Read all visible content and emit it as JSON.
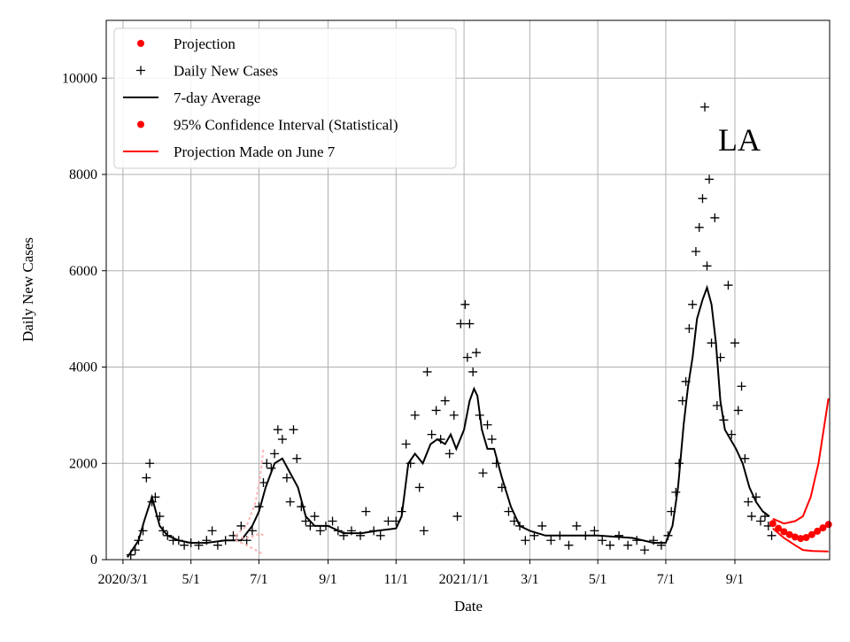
{
  "chart_data": {
    "type": "scatter",
    "title": "",
    "region_label": "LA",
    "xlabel": "Date",
    "ylabel": "Daily New Cases",
    "xlim": [
      "2020-02-15",
      "2021-11-25"
    ],
    "ylim": [
      0,
      11200
    ],
    "grid": true,
    "legend_position": "upper-left",
    "x_ticks": [
      {
        "date": "2020-03-01",
        "label": "2020/3/1"
      },
      {
        "date": "2020-05-01",
        "label": "5/1"
      },
      {
        "date": "2020-07-01",
        "label": "7/1"
      },
      {
        "date": "2020-09-01",
        "label": "9/1"
      },
      {
        "date": "2020-11-01",
        "label": "11/1"
      },
      {
        "date": "2021-01-01",
        "label": "2021/1/1"
      },
      {
        "date": "2021-03-01",
        "label": "3/1"
      },
      {
        "date": "2021-05-01",
        "label": "5/1"
      },
      {
        "date": "2021-07-01",
        "label": "7/1"
      },
      {
        "date": "2021-09-01",
        "label": "9/1"
      }
    ],
    "y_ticks": [
      0,
      2000,
      4000,
      6000,
      8000,
      10000
    ],
    "legend": [
      {
        "label": "Projection",
        "marker": "dot",
        "color": "#ff0000"
      },
      {
        "label": "Daily New Cases",
        "marker": "plus",
        "color": "#000000"
      },
      {
        "label": "7-day Average",
        "marker": "line",
        "color": "#000000"
      },
      {
        "label": "95% Confidence Interval (Statistical)",
        "marker": "dot",
        "color": "#ff0000"
      },
      {
        "label": "Projection Made on June 7",
        "marker": "line",
        "color": "#ff0000"
      }
    ],
    "series": [
      {
        "name": "Daily New Cases",
        "style": "plus",
        "color": "#000000",
        "points": [
          [
            "2020-03-08",
            100
          ],
          [
            "2020-03-12",
            200
          ],
          [
            "2020-03-15",
            400
          ],
          [
            "2020-03-19",
            600
          ],
          [
            "2020-03-22",
            1700
          ],
          [
            "2020-03-25",
            2000
          ],
          [
            "2020-03-27",
            1200
          ],
          [
            "2020-03-30",
            1300
          ],
          [
            "2020-04-03",
            900
          ],
          [
            "2020-04-06",
            600
          ],
          [
            "2020-04-10",
            500
          ],
          [
            "2020-04-15",
            400
          ],
          [
            "2020-04-20",
            400
          ],
          [
            "2020-04-25",
            300
          ],
          [
            "2020-05-01",
            350
          ],
          [
            "2020-05-08",
            300
          ],
          [
            "2020-05-15",
            400
          ],
          [
            "2020-05-20",
            600
          ],
          [
            "2020-05-25",
            300
          ],
          [
            "2020-06-01",
            400
          ],
          [
            "2020-06-08",
            500
          ],
          [
            "2020-06-15",
            700
          ],
          [
            "2020-06-20",
            400
          ],
          [
            "2020-06-25",
            600
          ],
          [
            "2020-07-01",
            1100
          ],
          [
            "2020-07-05",
            1600
          ],
          [
            "2020-07-08",
            2000
          ],
          [
            "2020-07-12",
            1900
          ],
          [
            "2020-07-15",
            2200
          ],
          [
            "2020-07-18",
            2700
          ],
          [
            "2020-07-22",
            2500
          ],
          [
            "2020-07-26",
            1700
          ],
          [
            "2020-07-29",
            1200
          ],
          [
            "2020-08-01",
            2700
          ],
          [
            "2020-08-04",
            2100
          ],
          [
            "2020-08-08",
            1100
          ],
          [
            "2020-08-12",
            800
          ],
          [
            "2020-08-16",
            700
          ],
          [
            "2020-08-20",
            900
          ],
          [
            "2020-08-25",
            600
          ],
          [
            "2020-08-30",
            700
          ],
          [
            "2020-09-05",
            800
          ],
          [
            "2020-09-10",
            600
          ],
          [
            "2020-09-15",
            500
          ],
          [
            "2020-09-22",
            600
          ],
          [
            "2020-09-30",
            500
          ],
          [
            "2020-10-05",
            1000
          ],
          [
            "2020-10-12",
            600
          ],
          [
            "2020-10-18",
            500
          ],
          [
            "2020-10-25",
            800
          ],
          [
            "2020-11-01",
            800
          ],
          [
            "2020-11-06",
            1000
          ],
          [
            "2020-11-10",
            2400
          ],
          [
            "2020-11-14",
            2000
          ],
          [
            "2020-11-18",
            3000
          ],
          [
            "2020-11-22",
            1500
          ],
          [
            "2020-11-26",
            600
          ],
          [
            "2020-11-29",
            3900
          ],
          [
            "2020-12-03",
            2600
          ],
          [
            "2020-12-07",
            3100
          ],
          [
            "2020-12-11",
            2500
          ],
          [
            "2020-12-15",
            3300
          ],
          [
            "2020-12-19",
            2200
          ],
          [
            "2020-12-23",
            3000
          ],
          [
            "2020-12-26",
            900
          ],
          [
            "2020-12-29",
            4900
          ],
          [
            "2021-01-02",
            5300
          ],
          [
            "2021-01-04",
            4200
          ],
          [
            "2021-01-06",
            4900
          ],
          [
            "2021-01-09",
            3900
          ],
          [
            "2021-01-12",
            4300
          ],
          [
            "2021-01-15",
            3000
          ],
          [
            "2021-01-18",
            1800
          ],
          [
            "2021-01-22",
            2800
          ],
          [
            "2021-01-26",
            2500
          ],
          [
            "2021-01-30",
            2000
          ],
          [
            "2021-02-04",
            1500
          ],
          [
            "2021-02-10",
            1000
          ],
          [
            "2021-02-15",
            800
          ],
          [
            "2021-02-20",
            700
          ],
          [
            "2021-02-25",
            400
          ],
          [
            "2021-03-05",
            500
          ],
          [
            "2021-03-12",
            700
          ],
          [
            "2021-03-20",
            400
          ],
          [
            "2021-03-28",
            500
          ],
          [
            "2021-04-05",
            300
          ],
          [
            "2021-04-12",
            700
          ],
          [
            "2021-04-20",
            500
          ],
          [
            "2021-04-28",
            600
          ],
          [
            "2021-05-05",
            400
          ],
          [
            "2021-05-12",
            300
          ],
          [
            "2021-05-20",
            500
          ],
          [
            "2021-05-28",
            300
          ],
          [
            "2021-06-05",
            400
          ],
          [
            "2021-06-12",
            200
          ],
          [
            "2021-06-20",
            400
          ],
          [
            "2021-06-27",
            300
          ],
          [
            "2021-07-03",
            500
          ],
          [
            "2021-07-06",
            1000
          ],
          [
            "2021-07-10",
            1400
          ],
          [
            "2021-07-13",
            2000
          ],
          [
            "2021-07-16",
            3300
          ],
          [
            "2021-07-19",
            3700
          ],
          [
            "2021-07-22",
            4800
          ],
          [
            "2021-07-25",
            5300
          ],
          [
            "2021-07-28",
            6400
          ],
          [
            "2021-07-31",
            6900
          ],
          [
            "2021-08-03",
            7500
          ],
          [
            "2021-08-05",
            9400
          ],
          [
            "2021-08-07",
            6100
          ],
          [
            "2021-08-09",
            7900
          ],
          [
            "2021-08-11",
            4500
          ],
          [
            "2021-08-14",
            7100
          ],
          [
            "2021-08-16",
            3200
          ],
          [
            "2021-08-19",
            4200
          ],
          [
            "2021-08-22",
            2900
          ],
          [
            "2021-08-26",
            5700
          ],
          [
            "2021-08-29",
            2600
          ],
          [
            "2021-09-01",
            4500
          ],
          [
            "2021-09-04",
            3100
          ],
          [
            "2021-09-07",
            3600
          ],
          [
            "2021-09-10",
            2100
          ],
          [
            "2021-09-13",
            1200
          ],
          [
            "2021-09-16",
            900
          ],
          [
            "2021-09-20",
            1300
          ],
          [
            "2021-09-24",
            800
          ],
          [
            "2021-09-28",
            900
          ],
          [
            "2021-10-01",
            700
          ],
          [
            "2021-10-04",
            500
          ]
        ]
      },
      {
        "name": "7-day Average",
        "style": "line",
        "color": "#000000",
        "points": [
          [
            "2020-03-05",
            50
          ],
          [
            "2020-03-15",
            400
          ],
          [
            "2020-03-20",
            800
          ],
          [
            "2020-03-27",
            1300
          ],
          [
            "2020-04-03",
            700
          ],
          [
            "2020-04-10",
            500
          ],
          [
            "2020-04-20",
            400
          ],
          [
            "2020-05-01",
            350
          ],
          [
            "2020-05-15",
            350
          ],
          [
            "2020-06-01",
            400
          ],
          [
            "2020-06-15",
            400
          ],
          [
            "2020-06-25",
            700
          ],
          [
            "2020-07-01",
            1000
          ],
          [
            "2020-07-07",
            1500
          ],
          [
            "2020-07-15",
            2000
          ],
          [
            "2020-07-22",
            2100
          ],
          [
            "2020-07-29",
            1800
          ],
          [
            "2020-08-05",
            1500
          ],
          [
            "2020-08-12",
            900
          ],
          [
            "2020-08-20",
            700
          ],
          [
            "2020-09-01",
            700
          ],
          [
            "2020-09-15",
            550
          ],
          [
            "2020-10-01",
            550
          ],
          [
            "2020-10-15",
            600
          ],
          [
            "2020-11-01",
            650
          ],
          [
            "2020-11-06",
            900
          ],
          [
            "2020-11-12",
            2000
          ],
          [
            "2020-11-18",
            2200
          ],
          [
            "2020-11-25",
            2000
          ],
          [
            "2020-12-02",
            2400
          ],
          [
            "2020-12-08",
            2500
          ],
          [
            "2020-12-15",
            2400
          ],
          [
            "2020-12-20",
            2600
          ],
          [
            "2020-12-25",
            2300
          ],
          [
            "2021-01-01",
            2700
          ],
          [
            "2021-01-06",
            3300
          ],
          [
            "2021-01-10",
            3550
          ],
          [
            "2021-01-13",
            3400
          ],
          [
            "2021-01-17",
            2700
          ],
          [
            "2021-01-22",
            2300
          ],
          [
            "2021-01-28",
            2300
          ],
          [
            "2021-02-04",
            1700
          ],
          [
            "2021-02-12",
            1100
          ],
          [
            "2021-02-20",
            700
          ],
          [
            "2021-03-01",
            600
          ],
          [
            "2021-03-15",
            500
          ],
          [
            "2021-04-01",
            500
          ],
          [
            "2021-05-01",
            500
          ],
          [
            "2021-06-01",
            450
          ],
          [
            "2021-06-20",
            350
          ],
          [
            "2021-07-01",
            350
          ],
          [
            "2021-07-07",
            700
          ],
          [
            "2021-07-12",
            1500
          ],
          [
            "2021-07-17",
            2800
          ],
          [
            "2021-07-21",
            3600
          ],
          [
            "2021-07-25",
            4200
          ],
          [
            "2021-07-29",
            5000
          ],
          [
            "2021-08-03",
            5400
          ],
          [
            "2021-08-07",
            5650
          ],
          [
            "2021-08-11",
            5300
          ],
          [
            "2021-08-15",
            4500
          ],
          [
            "2021-08-19",
            3300
          ],
          [
            "2021-08-23",
            2700
          ],
          [
            "2021-08-28",
            2500
          ],
          [
            "2021-09-02",
            2300
          ],
          [
            "2021-09-08",
            2000
          ],
          [
            "2021-09-14",
            1500
          ],
          [
            "2021-09-20",
            1200
          ],
          [
            "2021-09-26",
            1000
          ],
          [
            "2021-10-02",
            900
          ]
        ]
      },
      {
        "name": "Projection",
        "style": "dot",
        "color": "#ff0000",
        "points": [
          [
            "2021-10-05",
            750
          ],
          [
            "2021-10-10",
            650
          ],
          [
            "2021-10-15",
            580
          ],
          [
            "2021-10-20",
            520
          ],
          [
            "2021-10-25",
            470
          ],
          [
            "2021-10-30",
            440
          ],
          [
            "2021-11-04",
            460
          ],
          [
            "2021-11-09",
            520
          ],
          [
            "2021-11-14",
            590
          ],
          [
            "2021-11-19",
            660
          ],
          [
            "2021-11-24",
            730
          ]
        ]
      },
      {
        "name": "95% Confidence Interval (Statistical)",
        "style": "line",
        "color": "#ff0000",
        "points_upper": [
          [
            "2021-10-05",
            850
          ],
          [
            "2021-10-15",
            750
          ],
          [
            "2021-10-25",
            800
          ],
          [
            "2021-11-01",
            900
          ],
          [
            "2021-11-08",
            1300
          ],
          [
            "2021-11-15",
            2000
          ],
          [
            "2021-11-24",
            3350
          ]
        ],
        "points_lower": [
          [
            "2021-10-05",
            650
          ],
          [
            "2021-10-15",
            450
          ],
          [
            "2021-10-25",
            300
          ],
          [
            "2021-11-01",
            200
          ],
          [
            "2021-11-10",
            180
          ],
          [
            "2021-11-24",
            170
          ]
        ]
      },
      {
        "name": "Projection Made on June 7",
        "style": "faded",
        "color": "#ffb3b3",
        "points_upper": [
          [
            "2020-06-10",
            500
          ],
          [
            "2020-06-20",
            700
          ],
          [
            "2020-06-28",
            1200
          ],
          [
            "2020-07-02",
            1700
          ],
          [
            "2020-07-05",
            2300
          ]
        ],
        "points_lower": [
          [
            "2020-06-10",
            400
          ],
          [
            "2020-06-20",
            300
          ],
          [
            "2020-06-28",
            200
          ],
          [
            "2020-07-02",
            150
          ],
          [
            "2020-07-05",
            100
          ]
        ],
        "points_mid": [
          [
            "2020-06-10",
            450
          ],
          [
            "2020-06-20",
            450
          ],
          [
            "2020-06-28",
            500
          ],
          [
            "2020-07-02",
            550
          ],
          [
            "2020-07-05",
            500
          ]
        ]
      }
    ]
  }
}
